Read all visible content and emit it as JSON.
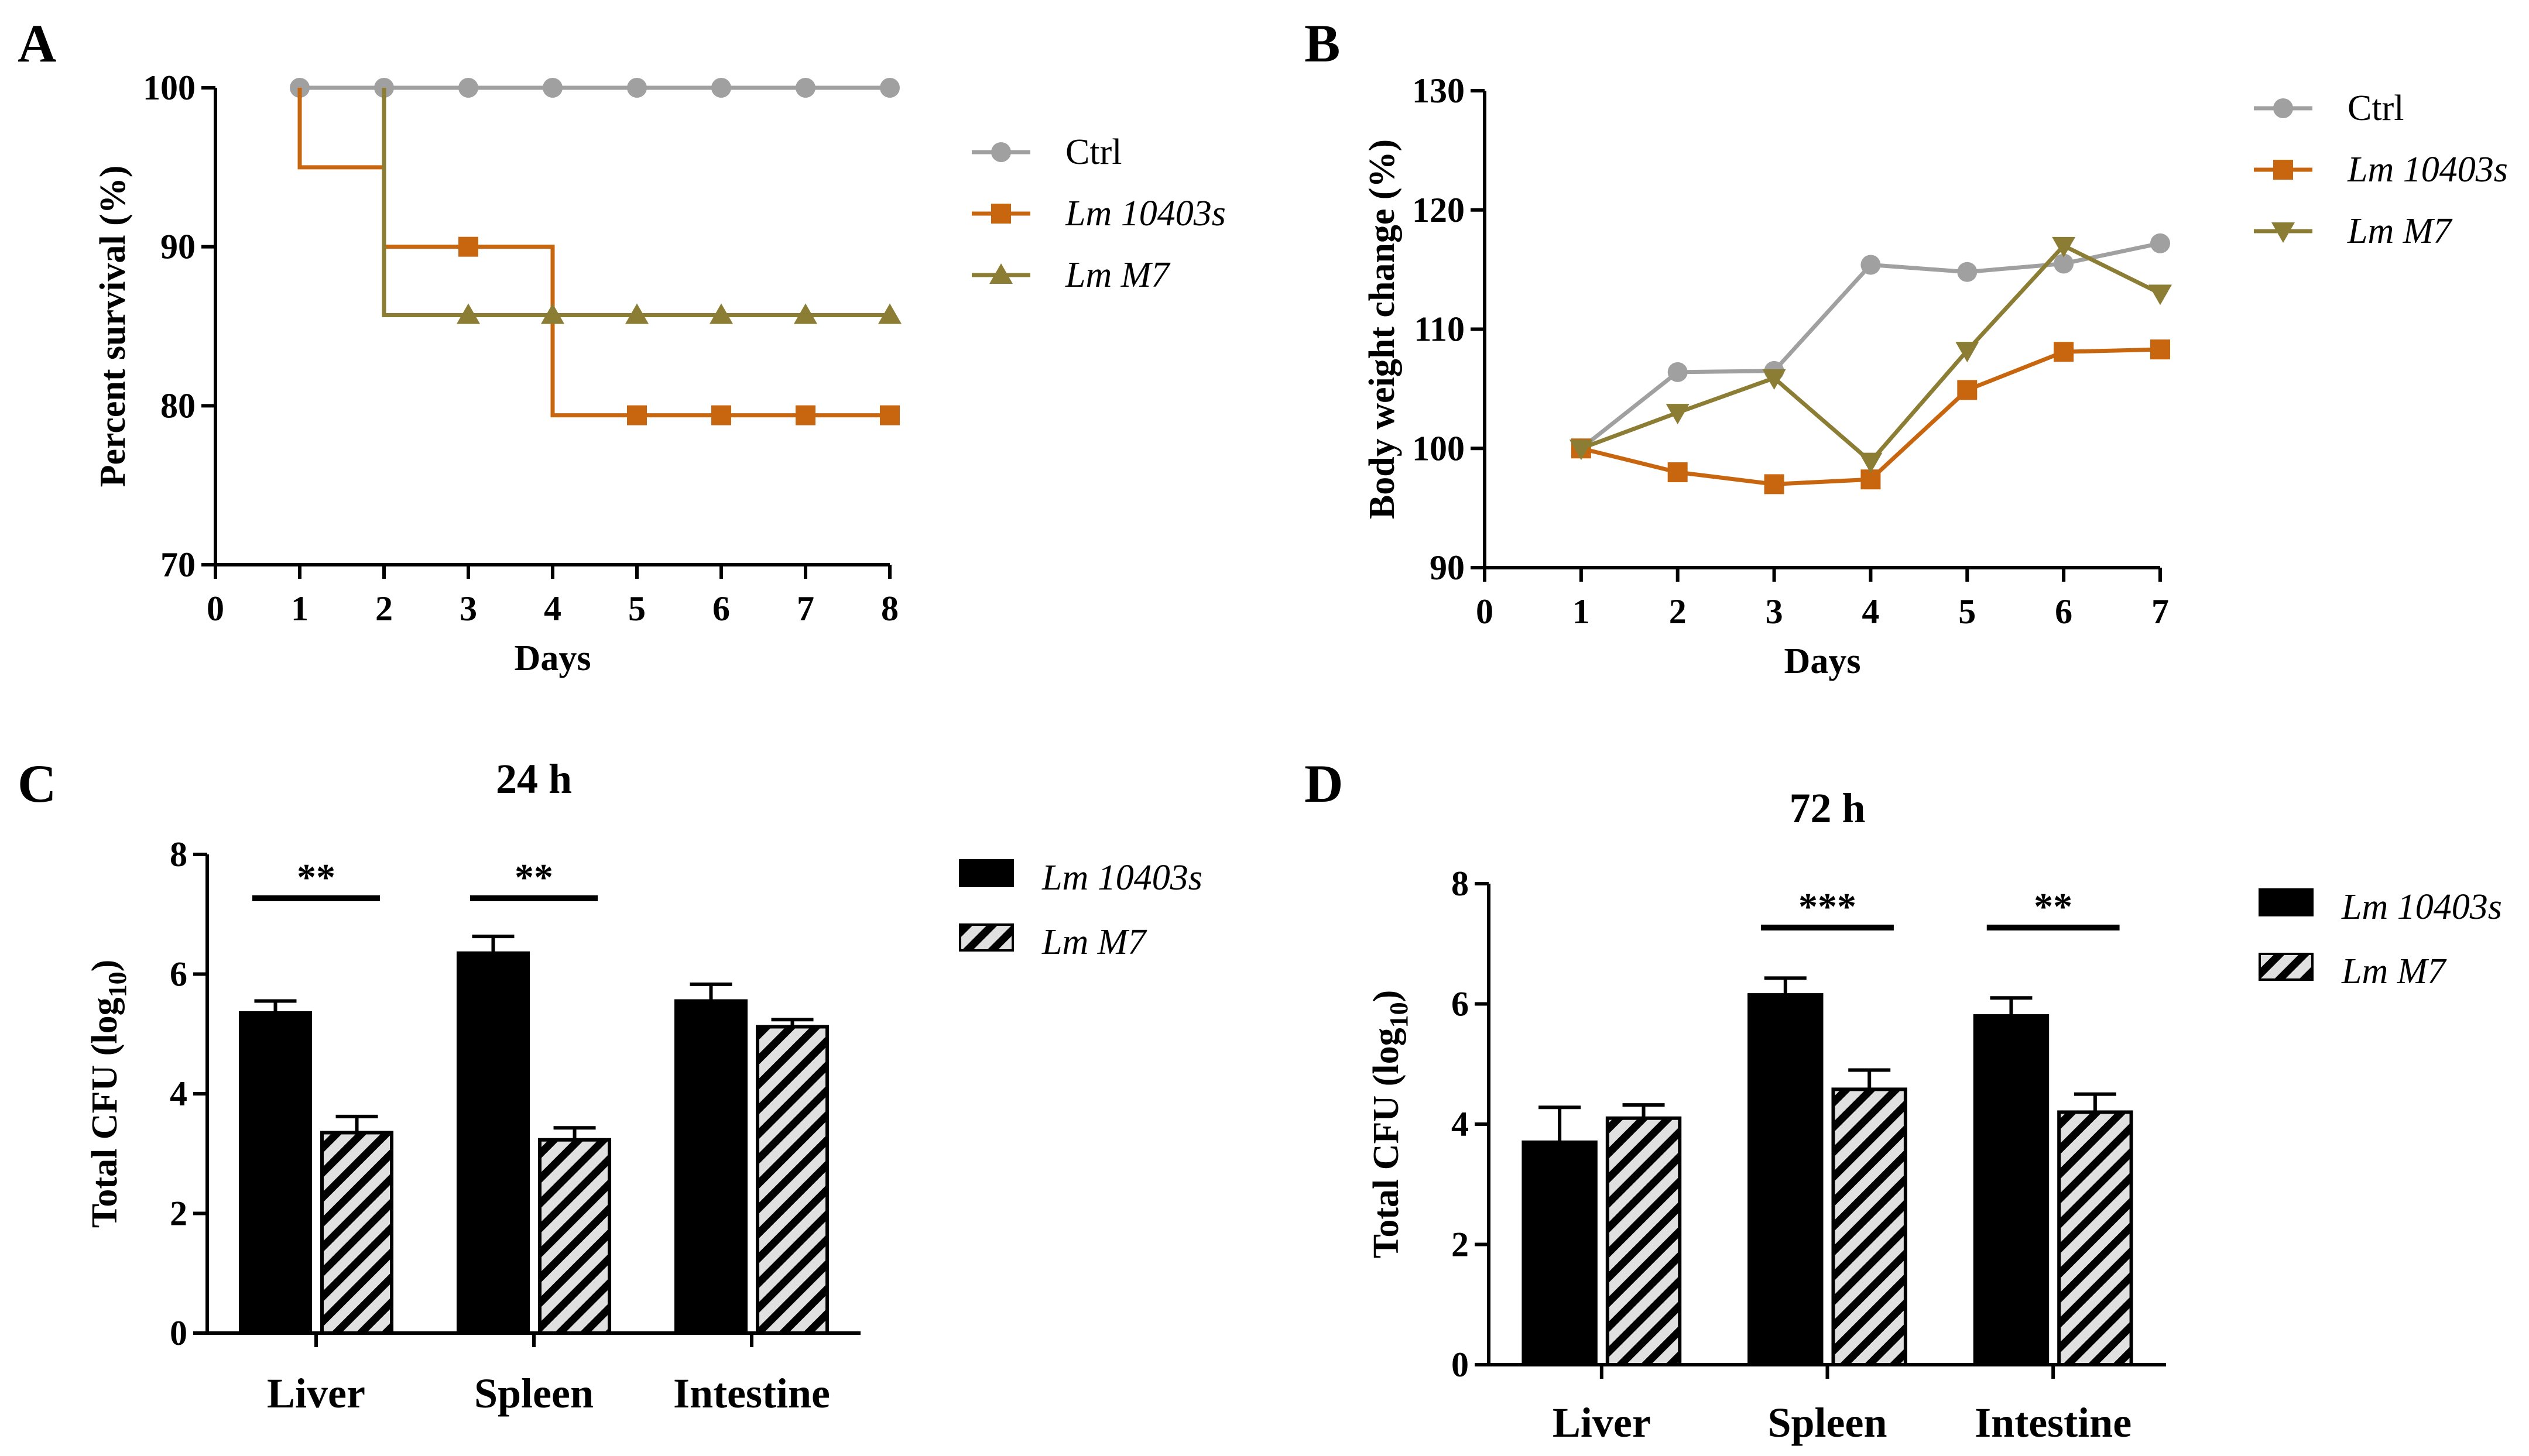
{
  "colors": {
    "ctrl": "#a0a0a0",
    "lm10403s": "#c8660f",
    "lmM7": "#8b7d33",
    "bar": "#000000"
  },
  "chart_data": [
    {
      "panel": "A",
      "type": "line",
      "step": true,
      "title": "",
      "xlabel": "Days",
      "ylabel": "Percent survival (%)",
      "xlim": [
        0,
        8
      ],
      "ylim": [
        70,
        100
      ],
      "xticks": [
        "0",
        "1",
        "2",
        "3",
        "4",
        "5",
        "6",
        "7",
        "8"
      ],
      "yticks": [
        "70",
        "80",
        "90",
        "100"
      ],
      "legend_position": "right",
      "series": [
        {
          "name": "Ctrl",
          "italic": false,
          "color": "#a0a0a0",
          "marker": "circle",
          "steps": [
            [
              1,
              100
            ],
            [
              8,
              100
            ]
          ],
          "markers": [
            [
              1,
              100
            ],
            [
              2,
              100
            ],
            [
              3,
              100
            ],
            [
              4,
              100
            ],
            [
              5,
              100
            ],
            [
              6,
              100
            ],
            [
              7,
              100
            ],
            [
              8,
              100
            ]
          ]
        },
        {
          "name": "Lm 10403s",
          "italic": true,
          "color": "#c8660f",
          "marker": "square",
          "steps": [
            [
              1,
              100
            ],
            [
              1,
              95
            ],
            [
              2,
              95
            ],
            [
              2,
              90
            ],
            [
              4,
              90
            ],
            [
              4,
              79.4
            ],
            [
              8,
              79.4
            ]
          ],
          "markers": [
            [
              3,
              90
            ],
            [
              5,
              79.4
            ],
            [
              6,
              79.4
            ],
            [
              7,
              79.4
            ],
            [
              8,
              79.4
            ]
          ]
        },
        {
          "name": "Lm M7",
          "italic": true,
          "color": "#8b7d33",
          "marker": "triangle-up",
          "steps": [
            [
              2,
              100
            ],
            [
              2,
              85.7
            ],
            [
              8,
              85.7
            ]
          ],
          "markers": [
            [
              3,
              85.7
            ],
            [
              4,
              85.7
            ],
            [
              5,
              85.7
            ],
            [
              6,
              85.7
            ],
            [
              7,
              85.7
            ],
            [
              8,
              85.7
            ]
          ]
        }
      ]
    },
    {
      "panel": "B",
      "type": "line",
      "title": "",
      "xlabel": "Days",
      "ylabel": "Body weight change (%)",
      "xlim": [
        0,
        7
      ],
      "ylim": [
        90,
        130
      ],
      "xticks": [
        "0",
        "1",
        "2",
        "3",
        "4",
        "5",
        "6",
        "7"
      ],
      "yticks": [
        "90",
        "100",
        "110",
        "120",
        "130"
      ],
      "legend_position": "top-right",
      "x": [
        1,
        2,
        3,
        4,
        5,
        6,
        7
      ],
      "series": [
        {
          "name": "Ctrl",
          "italic": false,
          "color": "#a0a0a0",
          "marker": "circle",
          "values": [
            100,
            106.4,
            106.5,
            115.4,
            114.8,
            115.5,
            117.2
          ]
        },
        {
          "name": "Lm 10403s",
          "italic": true,
          "color": "#c8660f",
          "marker": "square",
          "values": [
            100,
            98.0,
            97.0,
            97.4,
            104.9,
            108.1,
            108.3
          ]
        },
        {
          "name": "Lm M7",
          "italic": true,
          "color": "#8b7d33",
          "marker": "triangle-down",
          "values": [
            100,
            103.0,
            105.9,
            98.9,
            108.2,
            117.0,
            113.0
          ]
        }
      ]
    },
    {
      "panel": "C",
      "type": "bar",
      "title": "24 h",
      "xlabel": "",
      "ylabel": "Total CFU (log10)",
      "ylabel_main": "Total CFU (log",
      "ylabel_sub": "10",
      "ylabel_end": ")",
      "ylim": [
        0,
        8
      ],
      "yticks": [
        "0",
        "2",
        "4",
        "6",
        "8"
      ],
      "categories": [
        "Liver",
        "Spleen",
        "Intestine"
      ],
      "legend_position": "right",
      "series": [
        {
          "name": "Lm 10403s",
          "italic": true,
          "fill": "solid",
          "values": [
            5.35,
            6.35,
            5.55
          ],
          "errors": [
            0.2,
            0.28,
            0.28
          ]
        },
        {
          "name": "Lm M7",
          "italic": true,
          "fill": "hatched",
          "values": [
            3.35,
            3.23,
            5.12
          ],
          "errors": [
            0.27,
            0.2,
            0.12
          ]
        }
      ],
      "significance": [
        {
          "category": 0,
          "label": "**"
        },
        {
          "category": 1,
          "label": "**"
        }
      ]
    },
    {
      "panel": "D",
      "type": "bar",
      "title": "72 h",
      "xlabel": "",
      "ylabel": "Total CFU (log10)",
      "ylabel_main": "Total CFU (log",
      "ylabel_sub": "10",
      "ylabel_end": ")",
      "ylim": [
        0,
        8
      ],
      "yticks": [
        "0",
        "2",
        "4",
        "6",
        "8"
      ],
      "categories": [
        "Liver",
        "Spleen",
        "Intestine"
      ],
      "legend_position": "right",
      "series": [
        {
          "name": "Lm 10403s",
          "italic": true,
          "fill": "solid",
          "values": [
            3.7,
            6.15,
            5.8
          ],
          "errors": [
            0.58,
            0.28,
            0.3
          ]
        },
        {
          "name": "Lm M7",
          "italic": true,
          "fill": "hatched",
          "values": [
            4.1,
            4.58,
            4.2
          ],
          "errors": [
            0.22,
            0.32,
            0.3
          ]
        }
      ],
      "significance": [
        {
          "category": 1,
          "label": "***"
        },
        {
          "category": 2,
          "label": "**"
        }
      ]
    }
  ]
}
